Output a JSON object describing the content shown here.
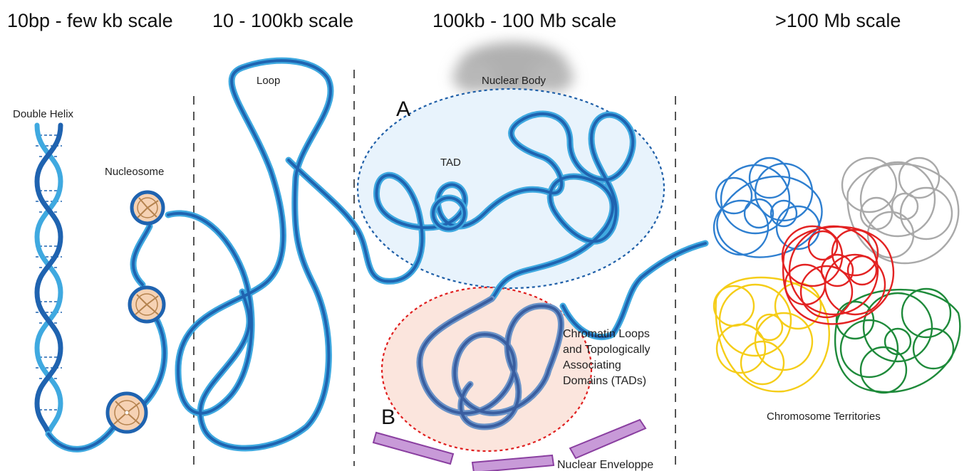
{
  "scales": [
    {
      "title": "10bp - few kb scale"
    },
    {
      "title": "10 - 100kb scale"
    },
    {
      "title": "100kb - 100 Mb scale"
    },
    {
      "title": ">100 Mb scale"
    }
  ],
  "labels": {
    "double_helix": "Double Helix",
    "nucleosome": "Nucleosome",
    "loop": "Loop",
    "nuclear_body": "Nuclear Body",
    "compartment_a": "A",
    "tad": "TAD",
    "compartment_b": "B",
    "chromatin_loops": [
      "Chromatin Loops",
      "and Topologically",
      "Associating",
      "Domains (TADs)"
    ],
    "nuclear_envelope": "Nuclear Enveloppe",
    "chromosome_territories": "Chromosome Territories"
  },
  "colors": {
    "strand_dark": "#1f63b0",
    "strand_light": "#3fa9e0",
    "nucleosome_fill": "#f6d2b4",
    "nucleosome_edge": "#b5834f",
    "compartment_a_fill": "#e8f3fc",
    "compartment_a_border": "#1f5fa8",
    "compartment_b_fill": "#fbe5dd",
    "compartment_b_border": "#e02020",
    "envelope": "#b889c8",
    "nuclear_body": "#b0b0b0",
    "territory_blue": "#2e7fd0",
    "territory_gray": "#a9a9a9",
    "territory_yellow": "#f5cd18",
    "territory_green": "#1e8a3a",
    "territory_red": "#e32222"
  }
}
